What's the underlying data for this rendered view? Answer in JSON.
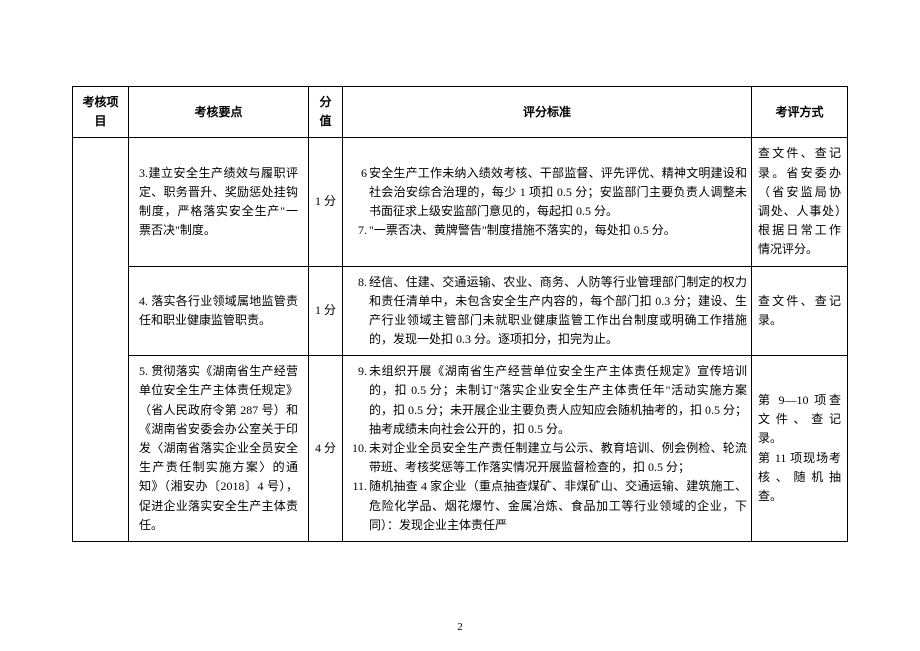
{
  "page_number": "2",
  "table": {
    "headers": {
      "c1": "考核项目",
      "c2": "考核要点",
      "c3": "分值",
      "c4": "评分标准",
      "c5": "考评方式"
    },
    "rows": [
      {
        "keypoint": "3.建立安全生产绩效与履职评定、职务晋升、奖励惩处挂钩制度，严格落实安全生产\"一票否决\"制度。",
        "score": "1 分",
        "criteria": [
          {
            "n": "6",
            "t": "安全生产工作未纳入绩效考核、干部监督、评先评优、精神文明建设和社会治安综合治理的，每少 1 项扣 0.5 分；安监部门主要负责人调整未书面征求上级安监部门意见的，每起扣 0.5 分。"
          },
          {
            "n": "7.",
            "t": "\"一票否决、黄牌警告\"制度措施不落实的，每处扣 0.5 分。"
          }
        ],
        "method": "查文件、查记录。省安委办（省安监局协调处、人事处）根据日常工作情况评分。"
      },
      {
        "keypoint": "4. 落实各行业领域属地监管责任和职业健康监管职责。",
        "score": "1 分",
        "criteria": [
          {
            "n": "8.",
            "t": "经信、住建、交通运输、农业、商务、人防等行业管理部门制定的权力和责任清单中，未包含安全生产内容的，每个部门扣 0.3 分；建设、生产行业领域主管部门未就职业健康监管工作出台制度或明确工作措施的，发现一处扣 0.3 分。逐项扣分，扣完为止。"
          }
        ],
        "method": "查文件、查记录。"
      },
      {
        "keypoint": "5. 贯彻落实《湖南省生产经营单位安全生产主体责任规定》（省人民政府令第 287 号）和《湖南省安委会办公室关于印发〈湖南省落实企业全员安全生产责任制实施方案〉的通知》（湘安办〔2018〕4 号），促进企业落实安全生产主体责任。",
        "score": "4 分",
        "criteria": [
          {
            "n": "9.",
            "t": "未组织开展《湖南省生产经营单位安全生产主体责任规定》宣传培训的，扣 0.5 分；未制订\"落实企业安全生产主体责任年\"活动实施方案的，扣 0.5 分；未开展企业主要负责人应知应会随机抽考的，扣 0.5 分；抽考成绩未向社会公开的，扣 0.5 分。"
          },
          {
            "n": "10.",
            "t": "未对企业全员安全生产责任制建立与公示、教育培训、例会例检、轮流带班、考核奖惩等工作落实情况开展监督检查的，扣 0.5 分；"
          },
          {
            "n": "11.",
            "t": "随机抽查 4 家企业（重点抽查煤矿、非煤矿山、交通运输、建筑施工、危险化学品、烟花爆竹、金属冶炼、食品加工等行业领域的企业，下同）：发现企业主体责任严"
          }
        ],
        "method": "第 9—10 项查文件、查记录。\n第 11 项现场考核、随机抽查。"
      }
    ]
  }
}
